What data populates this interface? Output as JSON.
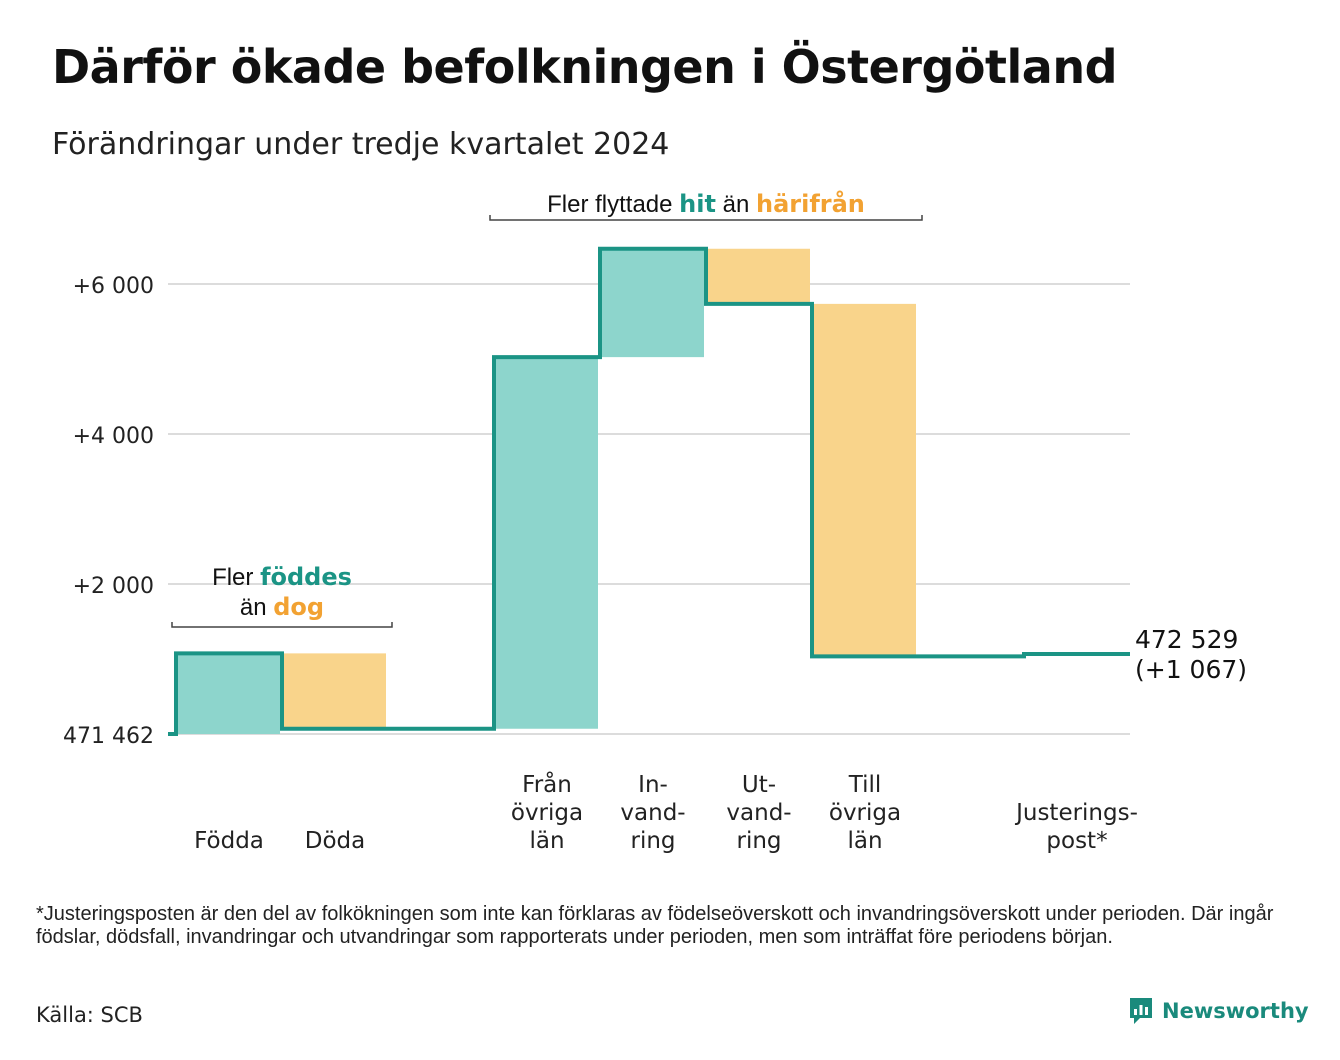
{
  "title": "Därför ökade befolkningen i Östergötland",
  "subtitle": "Förändringar under tredje kvartalet 2024",
  "colors": {
    "line": "#1b9485",
    "positive": "#8dd5cc",
    "negative": "#f9d48b",
    "accent_teal": "#1b9485",
    "accent_orange": "#f2a232",
    "grid": "#dcdcdc"
  },
  "chart_data": {
    "type": "waterfall",
    "start_value": 471462,
    "start_label": "471 462",
    "yticks": [
      {
        "value": 2000,
        "label": "+2 000"
      },
      {
        "value": 4000,
        "label": "+4 000"
      },
      {
        "value": 6000,
        "label": "+6 000"
      }
    ],
    "steps": [
      {
        "lines": [
          "Födda"
        ],
        "change": 1075,
        "sign": "positive"
      },
      {
        "lines": [
          "Döda"
        ],
        "change": -1005,
        "sign": "negative"
      },
      {
        "lines": [],
        "change": 0,
        "sign": "none"
      },
      {
        "lines": [
          "Från",
          "övriga",
          "län"
        ],
        "change": 4955,
        "sign": "positive"
      },
      {
        "lines": [
          "In-",
          "vand-",
          "ring"
        ],
        "change": 1445,
        "sign": "positive"
      },
      {
        "lines": [
          "Ut-",
          "vand-",
          "ring"
        ],
        "change": -735,
        "sign": "negative"
      },
      {
        "lines": [
          "Till",
          "övriga",
          "län"
        ],
        "change": -4700,
        "sign": "negative"
      },
      {
        "lines": [],
        "change": 0,
        "sign": "none"
      },
      {
        "lines": [
          "Justerings-",
          "post*"
        ],
        "change": 32,
        "sign": "none"
      }
    ],
    "end_value_label": "472 529",
    "end_change_label": "(+1 067)",
    "annotations": [
      {
        "parts": [
          [
            "Fler ",
            "plain"
          ],
          [
            "föddes",
            "teal"
          ]
        ],
        "line2": [
          [
            "än ",
            "plain"
          ],
          [
            "dog",
            "orange"
          ]
        ],
        "from_step": 0,
        "to_step": 1
      },
      {
        "parts": [
          [
            "Fler flyttade ",
            "plain"
          ],
          [
            "hit",
            "teal"
          ],
          [
            "  än ",
            "plain"
          ],
          [
            "härifrån",
            "orange"
          ]
        ],
        "line2": [],
        "from_step": 3,
        "to_step": 6
      }
    ]
  },
  "footnote": "*Justeringsposten är den del av folkökningen som inte kan förklaras av födelseöverskott och invandringsöverskott under perioden. Där ingår födslar, dödsfall, invandringar och utvandringar som rapporterats under perioden, men som inträffat före periodens början.",
  "source": "Källa: SCB",
  "brand": {
    "name": "Newsworthy",
    "icon": "newsworthy-logo-icon"
  }
}
